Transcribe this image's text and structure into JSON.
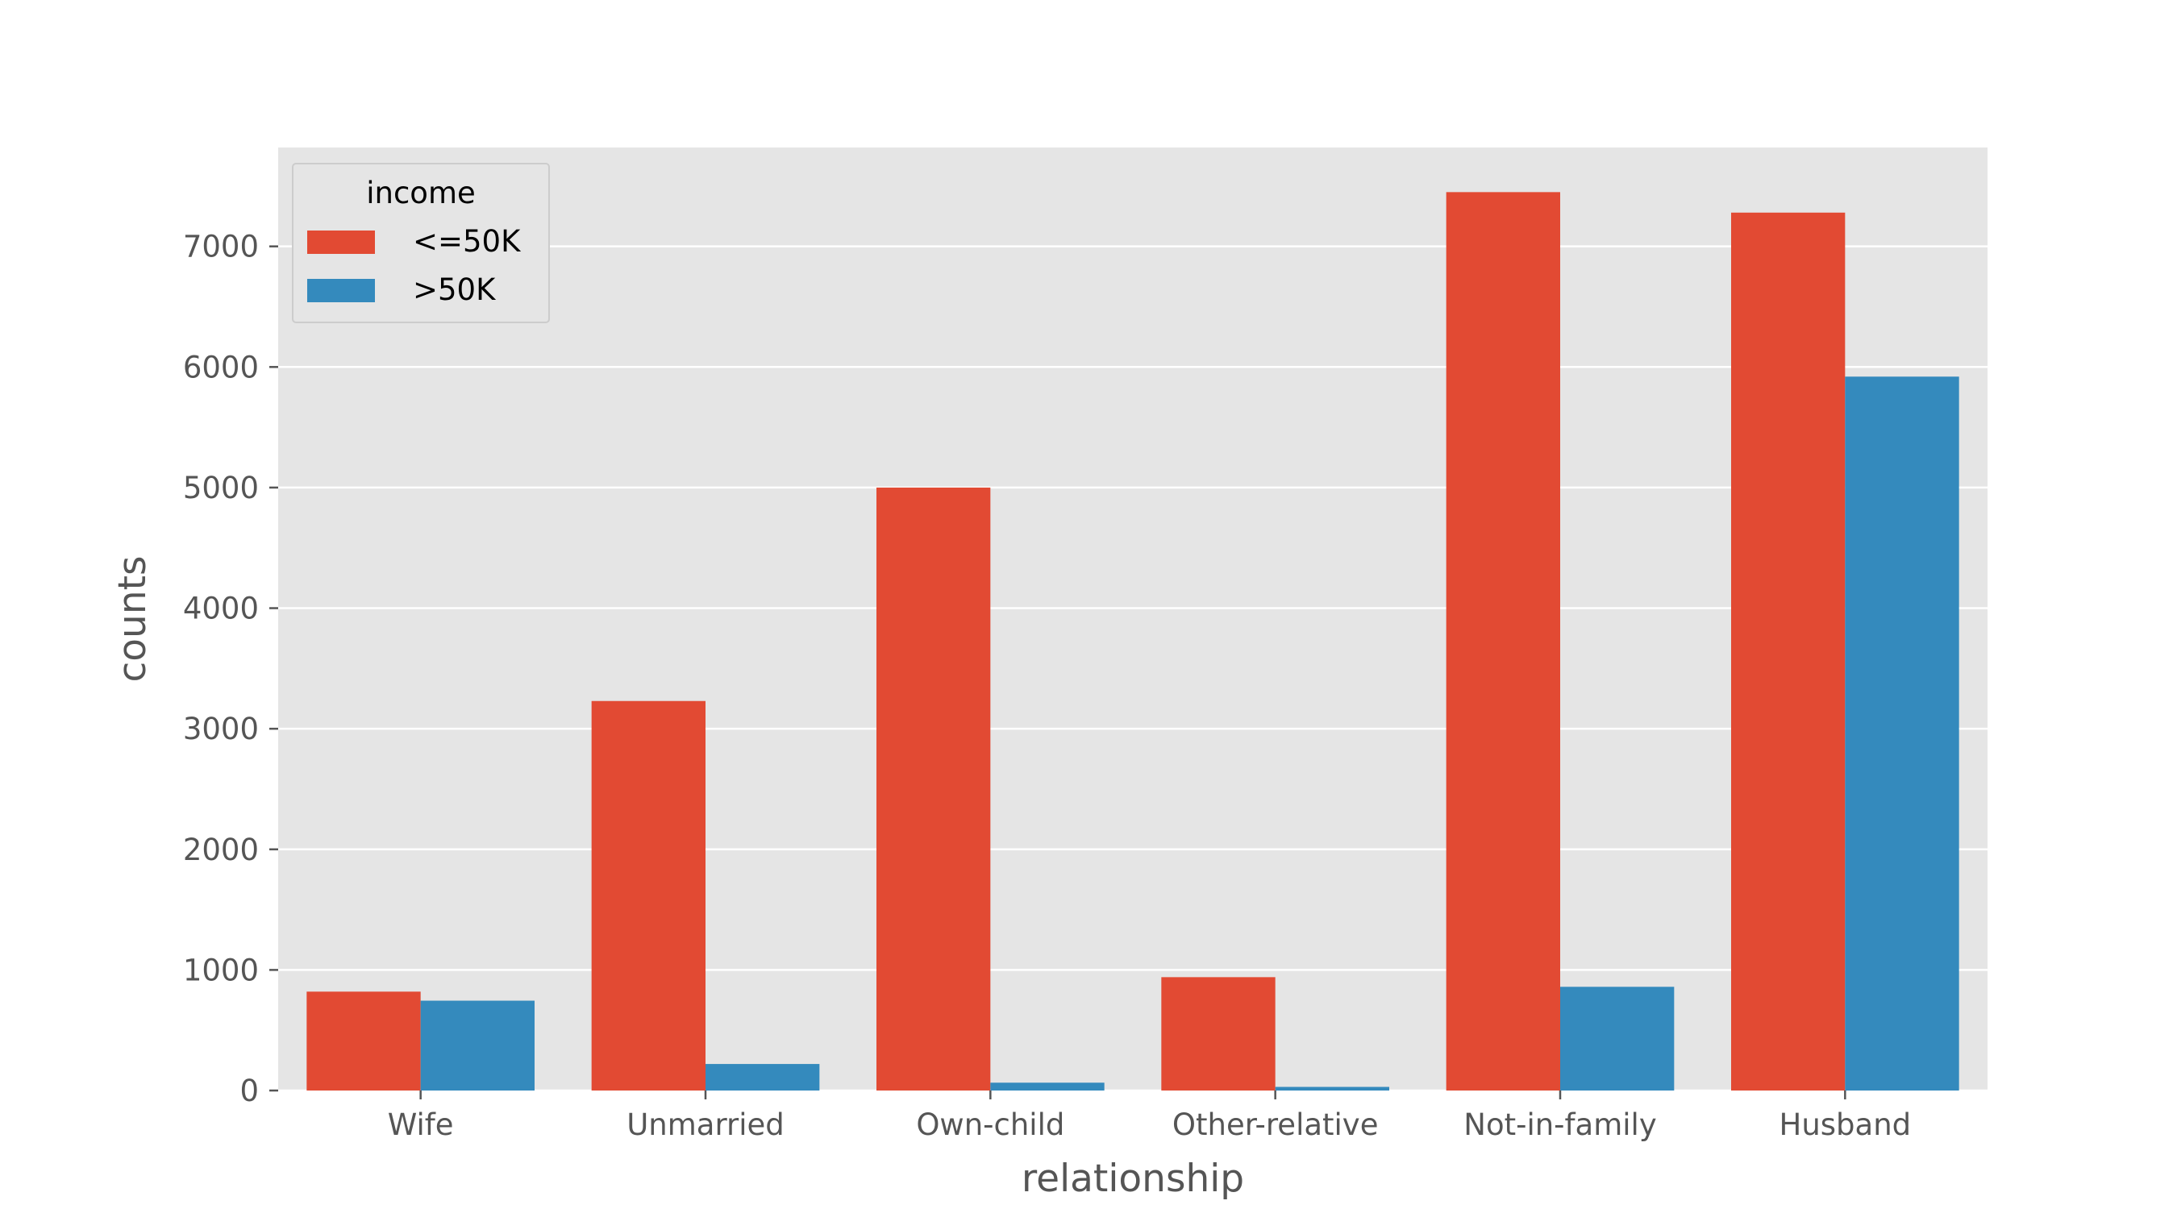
{
  "chart_data": {
    "type": "bar",
    "xlabel": "relationship",
    "ylabel": "counts",
    "categories": [
      "Wife",
      "Unmarried",
      "Own-child",
      "Other-relative",
      "Not-in-family",
      "Husband"
    ],
    "series": [
      {
        "name": "<=50K",
        "color": "#E24A33",
        "values": [
          820,
          3230,
          5000,
          940,
          7450,
          7280
        ]
      },
      {
        "name": ">50K",
        "color": "#348ABD",
        "values": [
          745,
          220,
          65,
          30,
          860,
          5920
        ]
      }
    ],
    "ylim": [
      0,
      7820
    ],
    "yticks": [
      0,
      1000,
      2000,
      3000,
      4000,
      5000,
      6000,
      7000
    ],
    "legend": {
      "title": "income",
      "position": "top-left"
    },
    "grid": true,
    "background": "#E5E5E5"
  }
}
